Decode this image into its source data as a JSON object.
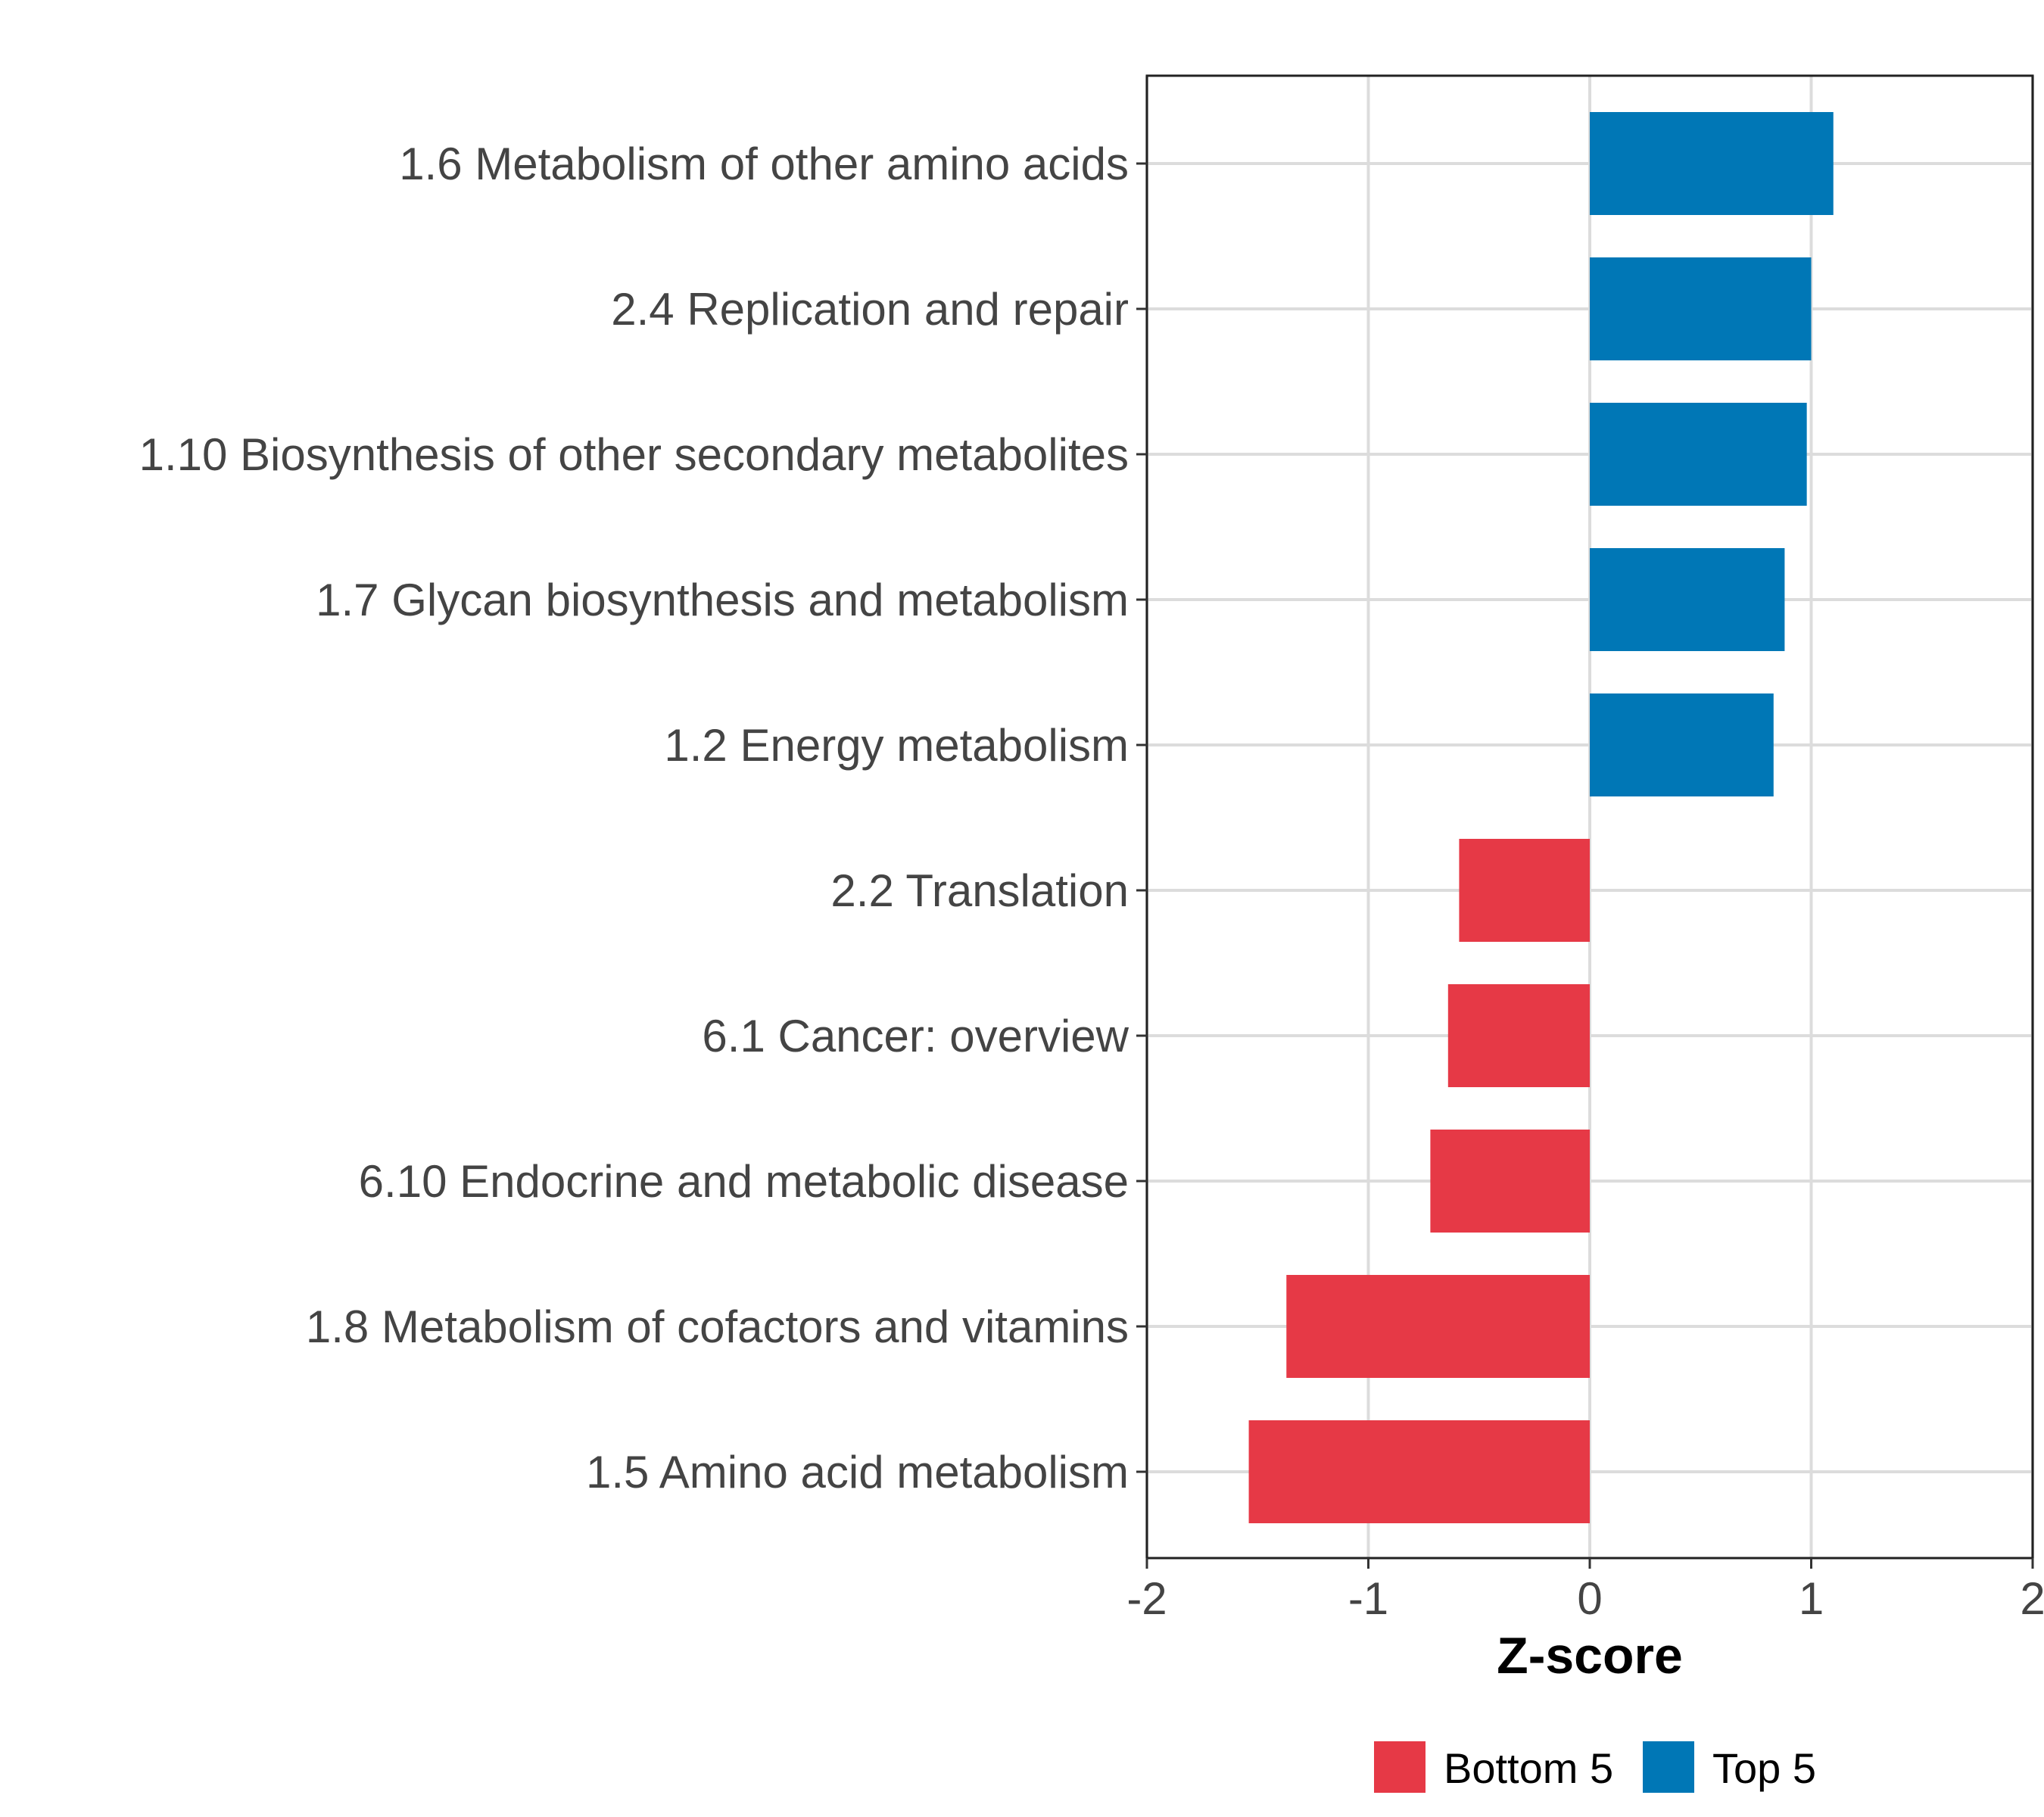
{
  "chart_data": {
    "type": "bar",
    "orientation": "horizontal",
    "title": "",
    "xlabel": "Z-score",
    "ylabel": "",
    "xlim": [
      -2,
      2
    ],
    "xticks": [
      "-2",
      "-1",
      "0",
      "1",
      "2"
    ],
    "grid": true,
    "legend_position": "bottom",
    "categories": [
      "1.6 Metabolism of other amino acids",
      "2.4 Replication and repair",
      "1.10 Biosynthesis of other secondary metabolites",
      "1.7 Glycan biosynthesis and metabolism",
      "1.2 Energy metabolism",
      "2.2 Translation",
      "6.1 Cancer: overview",
      "6.10 Endocrine and metabolic disease",
      "1.8 Metabolism of cofactors and vitamins",
      "1.5 Amino acid metabolism"
    ],
    "values": [
      1.1,
      1.0,
      0.98,
      0.88,
      0.83,
      -0.59,
      -0.64,
      -0.72,
      -1.37,
      -1.54
    ],
    "groups": [
      "Top 5",
      "Top 5",
      "Top 5",
      "Top 5",
      "Top 5",
      "Bottom 5",
      "Bottom 5",
      "Bottom 5",
      "Bottom 5",
      "Bottom 5"
    ],
    "legend": [
      {
        "name": "Bottom 5",
        "color": "#E63946"
      },
      {
        "name": "Top 5",
        "color": "#0077B6"
      }
    ]
  }
}
